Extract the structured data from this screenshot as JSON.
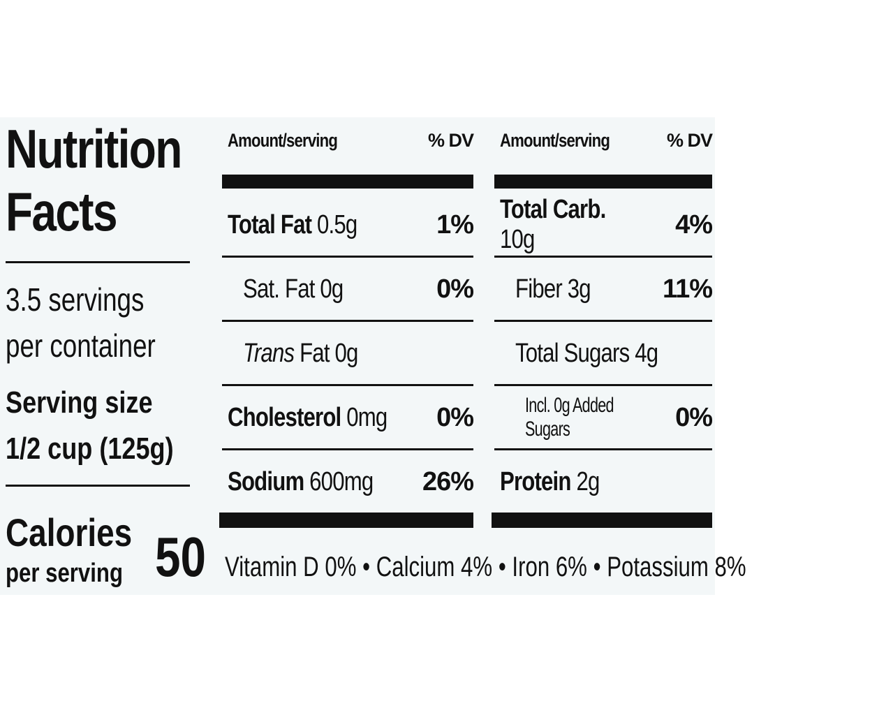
{
  "label": {
    "title": "Nutrition Facts",
    "servings": "3.5 servings per container",
    "serving_size": {
      "label": "Serving size",
      "value": "1/2 cup (125g)"
    },
    "calories": {
      "label": "Calories",
      "sublabel": "per serving",
      "value": 50
    },
    "columns": [
      {
        "header": {
          "amount": "Amount/serving",
          "dv": "% DV"
        },
        "rows": [
          {
            "name": "Total Fat",
            "amount": "0.5g",
            "dv": "1%"
          },
          {
            "name": "Sat. Fat",
            "amount": "0g",
            "dv": "0%"
          },
          {
            "name_italic": "Trans",
            "name": "Fat",
            "amount": "0g"
          },
          {
            "name": "Cholesterol",
            "amount": "0mg",
            "dv": "0%"
          },
          {
            "name": "Sodium",
            "amount": "600mg",
            "dv": "26%"
          }
        ]
      },
      {
        "header": {
          "amount": "Amount/serving",
          "dv": "% DV"
        },
        "rows": [
          {
            "name": "Total Carb.",
            "amount": "10g",
            "dv": "4%"
          },
          {
            "name": "Fiber",
            "amount": "3g",
            "dv": "11%"
          },
          {
            "name": "Total Sugars",
            "amount": "4g"
          },
          {
            "name": "Incl. 0g Added Sugars",
            "dv": "0%"
          },
          {
            "name": "Protein",
            "amount": "2g"
          }
        ]
      }
    ],
    "footer": "Vitamin D 0% • Calcium 4% • Iron 6% • Potassium 8%"
  }
}
